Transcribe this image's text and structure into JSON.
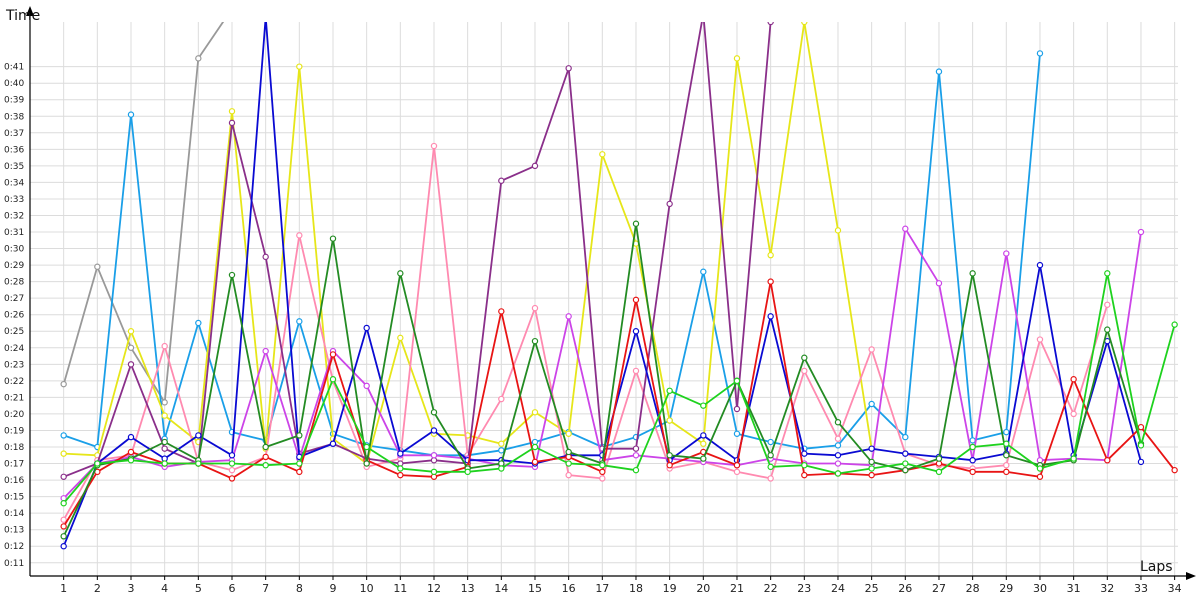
{
  "chart_data": {
    "type": "line",
    "xlabel": "Laps",
    "ylabel": "Time",
    "grid": true,
    "legend": "none",
    "y_axis_format": "m:ss",
    "x": [
      1,
      2,
      3,
      4,
      5,
      6,
      7,
      8,
      9,
      10,
      11,
      12,
      13,
      14,
      15,
      16,
      17,
      18,
      19,
      20,
      21,
      22,
      23,
      24,
      25,
      26,
      27,
      28,
      29,
      30,
      31,
      32,
      33,
      34
    ],
    "xlim": [
      0.0,
      34.1
    ],
    "ylim": [
      10.2,
      43.7
    ],
    "y_ticks": [
      11,
      12,
      13,
      14,
      15,
      16,
      17,
      18,
      19,
      20,
      21,
      22,
      23,
      24,
      25,
      26,
      27,
      28,
      29,
      30,
      31,
      32,
      33,
      34,
      35,
      36,
      37,
      38,
      39,
      40,
      41
    ],
    "y_tick_labels": [
      "0:11",
      "0:12",
      "0:13",
      "0:14",
      "0:15",
      "0:16",
      "0:17",
      "0:18",
      "0:19",
      "0:20",
      "0:21",
      "0:22",
      "0:23",
      "0:24",
      "0:25",
      "0:26",
      "0:27",
      "0:28",
      "0:29",
      "0:30",
      "0:31",
      "0:32",
      "0:33",
      "0:34",
      "0:35",
      "0:36",
      "0:37",
      "0:38",
      "0:39",
      "0:40",
      "0:41"
    ],
    "series": [
      {
        "color": "#999999",
        "values": [
          21.8,
          28.9,
          24.0,
          20.7,
          41.5,
          44.5,
          null,
          null,
          null,
          null,
          null,
          null,
          null,
          null,
          null,
          null,
          null,
          null,
          null,
          null,
          null,
          null,
          null,
          null,
          null,
          null,
          null,
          null,
          null,
          null,
          null,
          null,
          null,
          null
        ]
      },
      {
        "color": "#1a9fe8",
        "values": [
          18.7,
          18.0,
          38.1,
          18.5,
          25.5,
          18.9,
          18.4,
          25.6,
          18.8,
          18.1,
          17.8,
          17.5,
          17.5,
          17.8,
          18.3,
          18.9,
          18.0,
          18.6,
          19.6,
          28.6,
          18.8,
          18.3,
          17.9,
          18.1,
          20.6,
          18.6,
          40.7,
          18.4,
          18.9,
          41.8,
          null,
          null,
          null,
          null
        ]
      },
      {
        "color": "#e6e619",
        "values": [
          17.6,
          17.5,
          25.0,
          19.9,
          18.3,
          38.3,
          17.9,
          41.0,
          18.5,
          17.0,
          24.6,
          18.8,
          18.7,
          18.2,
          20.1,
          18.8,
          35.7,
          30.3,
          19.6,
          18.2,
          41.5,
          29.6,
          43.7,
          31.1,
          17.9,
          null,
          null,
          null,
          null,
          null,
          null,
          null,
          null,
          null
        ]
      },
      {
        "color": "#ff8ab0",
        "values": [
          13.6,
          17.2,
          17.5,
          24.1,
          17.1,
          16.6,
          17.4,
          30.8,
          22.0,
          16.8,
          17.3,
          36.2,
          17.5,
          20.9,
          26.4,
          16.3,
          16.1,
          22.6,
          16.7,
          17.1,
          16.5,
          16.1,
          22.6,
          18.5,
          23.9,
          17.6,
          16.9,
          16.7,
          16.9,
          24.5,
          20.0,
          26.6,
          null,
          null
        ]
      },
      {
        "color": "#8a2f8a",
        "values": [
          16.2,
          17.0,
          23.0,
          17.9,
          17.0,
          37.6,
          29.5,
          17.6,
          18.2,
          17.3,
          17.0,
          17.2,
          17.0,
          34.1,
          35.0,
          40.9,
          17.9,
          17.9,
          32.7,
          44.2,
          20.3,
          43.7,
          null,
          null,
          null,
          null,
          null,
          null,
          null,
          null,
          null,
          null,
          null,
          null
        ]
      },
      {
        "color": "#cc44e8",
        "values": [
          14.9,
          17.0,
          17.4,
          16.8,
          17.1,
          17.2,
          23.8,
          17.3,
          23.8,
          21.7,
          17.5,
          17.5,
          17.3,
          16.9,
          16.8,
          25.9,
          17.2,
          17.5,
          17.3,
          17.1,
          16.9,
          17.3,
          17.0,
          17.0,
          16.9,
          31.2,
          27.9,
          17.2,
          29.7,
          17.2,
          17.3,
          17.2,
          31.0,
          null
        ]
      },
      {
        "color": "#00008f",
        "values": [
          null,
          null,
          null,
          null,
          null,
          null,
          null,
          null,
          null,
          null,
          null,
          null,
          null,
          null,
          null,
          null,
          null,
          null,
          null,
          null,
          null,
          null,
          null,
          null,
          null,
          null,
          null,
          null,
          null,
          null,
          null,
          null,
          null,
          null
        ]
      },
      {
        "color": "#0a0ad2",
        "values": [
          12.0,
          17.0,
          18.6,
          17.3,
          18.7,
          17.5,
          44.0,
          17.4,
          18.2,
          25.2,
          17.6,
          19.0,
          17.2,
          17.2,
          17.0,
          17.5,
          17.5,
          25.0,
          17.2,
          18.7,
          17.2,
          25.9,
          17.6,
          17.5,
          17.9,
          17.6,
          17.4,
          17.2,
          17.6,
          29.0,
          17.5,
          24.4,
          17.1,
          null
        ]
      },
      {
        "color": "#e81414",
        "values": [
          13.2,
          16.5,
          17.7,
          17.0,
          17.0,
          16.1,
          17.4,
          16.5,
          23.6,
          17.2,
          16.3,
          16.2,
          16.8,
          26.2,
          17.1,
          17.4,
          16.5,
          26.9,
          16.9,
          17.7,
          16.9,
          28.0,
          16.3,
          16.4,
          16.3,
          16.6,
          17.0,
          16.5,
          16.5,
          16.2,
          22.1,
          17.2,
          19.2,
          16.6
        ]
      },
      {
        "color": "#238b23",
        "values": [
          12.6,
          16.9,
          17.3,
          18.3,
          17.2,
          28.4,
          18.0,
          18.7,
          30.6,
          17.0,
          28.5,
          20.1,
          16.7,
          17.0,
          24.4,
          17.7,
          17.0,
          31.5,
          17.5,
          17.3,
          22.0,
          17.5,
          23.4,
          19.5,
          17.1,
          16.6,
          17.3,
          28.5,
          17.5,
          16.9,
          17.2,
          25.1,
          18.2,
          null
        ]
      },
      {
        "color": "#1ed21e",
        "values": [
          14.6,
          17.0,
          17.2,
          17.0,
          17.0,
          17.0,
          16.9,
          17.0,
          22.1,
          18.0,
          16.7,
          16.5,
          16.5,
          16.7,
          18.0,
          17.0,
          16.9,
          16.6,
          21.4,
          20.5,
          22.0,
          16.8,
          16.9,
          16.4,
          16.7,
          17.0,
          16.5,
          18.0,
          18.2,
          16.7,
          17.3,
          28.5,
          18.1,
          25.4
        ]
      }
    ]
  }
}
